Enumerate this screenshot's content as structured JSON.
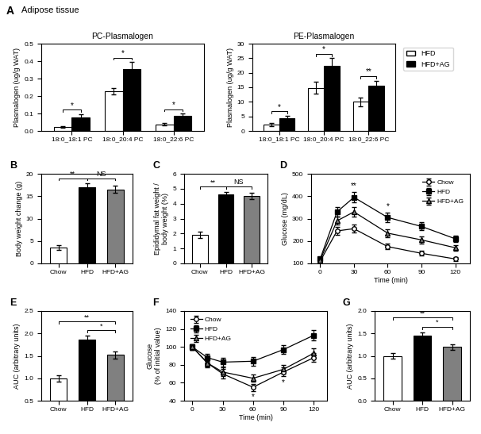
{
  "chart_data": [
    {
      "type": "bar",
      "panel_label": "A",
      "panel_title": "Adipose tissue",
      "title": "PC-Plasmalogen",
      "ylabel": "Plasmalogen (ug/g WAT)",
      "categories": [
        "18:0_18:1 PC",
        "18:0_20:4 PC",
        "18:0_22:6 PC"
      ],
      "series": [
        {
          "name": "HFD",
          "color": "white",
          "values": [
            0.022,
            0.228,
            0.038
          ],
          "errors": [
            0.005,
            0.018,
            0.007
          ]
        },
        {
          "name": "HFD+AG",
          "color": "black",
          "values": [
            0.078,
            0.355,
            0.087
          ],
          "errors": [
            0.018,
            0.04,
            0.012
          ]
        }
      ],
      "ylim": [
        0,
        0.5
      ],
      "yticks": [
        {
          "value": 0,
          "label": "0.0"
        },
        0.1,
        0.2,
        0.3,
        0.4,
        0.5
      ],
      "annotations": [
        {
          "text": "*",
          "category": "18:0_18:1 PC"
        },
        {
          "text": "*",
          "category": "18:0_20:4 PC"
        },
        {
          "text": "*",
          "category": "18:0_22:6 PC"
        }
      ]
    },
    {
      "type": "bar",
      "title": "PE-Plasmalogen",
      "ylabel": "Plasmalogen (ug/g WAT)",
      "categories": [
        "18:0_18:1 PC",
        "18:0_20:4 PC",
        "18:0_22:6 PC"
      ],
      "series": [
        {
          "name": "HFD",
          "color": "white",
          "values": [
            2.2,
            14.8,
            10.0
          ],
          "errors": [
            0.5,
            2.0,
            1.5
          ]
        },
        {
          "name": "HFD+AG",
          "color": "black",
          "values": [
            4.4,
            22.5,
            15.5
          ],
          "errors": [
            0.8,
            2.5,
            1.8
          ]
        }
      ],
      "ylim": [
        0,
        30
      ],
      "yticks": [
        0,
        5,
        10,
        15,
        20,
        25,
        30
      ],
      "legend": "right",
      "annotations": [
        {
          "text": "*",
          "category": "18:0_18:1 PC"
        },
        {
          "text": "*",
          "category": "18:0_20:4 PC"
        },
        {
          "text": "**",
          "category": "18:0_22:6 PC"
        }
      ]
    },
    {
      "type": "bar",
      "panel_label": "B",
      "ylabel": "Body weight change (g)",
      "categories": [
        "Chow",
        "HFD",
        "HFD+AG"
      ],
      "values": [
        3.5,
        17.0,
        16.5
      ],
      "errors": [
        0.5,
        0.8,
        0.8
      ],
      "colors": [
        "white",
        "black",
        "gray"
      ],
      "ylim": [
        0,
        20
      ],
      "yticks": [
        0,
        5,
        10,
        15,
        20
      ],
      "annotations": [
        {
          "text": "**",
          "from": "Chow",
          "to": "HFD"
        },
        {
          "text": "NS",
          "from": "HFD",
          "to": "HFD+AG"
        }
      ]
    },
    {
      "type": "bar",
      "panel_label": "C",
      "ylabel": "Epididymal fat weight /\nbody weight (%)",
      "categories": [
        "Chow",
        "HFD",
        "HFD+AG"
      ],
      "values": [
        1.9,
        4.6,
        4.5
      ],
      "errors": [
        0.2,
        0.2,
        0.2
      ],
      "colors": [
        "white",
        "black",
        "gray"
      ],
      "ylim": [
        0,
        6
      ],
      "yticks": [
        0,
        1,
        2,
        3,
        4,
        5,
        6
      ],
      "annotations": [
        {
          "text": "**",
          "from": "Chow",
          "to": "HFD"
        },
        {
          "text": "NS",
          "from": "HFD",
          "to": "HFD+AG"
        }
      ]
    },
    {
      "type": "line",
      "panel_label": "D",
      "xlabel": "Time (min)",
      "ylabel": "Glucose (mg/dL)",
      "x": [
        0,
        15,
        30,
        60,
        90,
        120
      ],
      "xlim": [
        -8,
        133
      ],
      "xticks": [
        0,
        30,
        60,
        90,
        120
      ],
      "ylim": [
        100,
        500
      ],
      "yticks": [
        100,
        200,
        300,
        400,
        500
      ],
      "legend": "upper right",
      "series": [
        {
          "name": "Chow",
          "color": "white",
          "marker": "circle",
          "values": [
            110,
            245,
            255,
            175,
            145,
            120
          ],
          "errors": [
            8,
            18,
            18,
            12,
            10,
            8
          ]
        },
        {
          "name": "HFD",
          "color": "black",
          "marker": "square",
          "values": [
            120,
            330,
            395,
            305,
            265,
            210
          ],
          "errors": [
            10,
            20,
            22,
            20,
            18,
            15
          ]
        },
        {
          "name": "HFD+AG",
          "color": "gray",
          "marker": "triangle",
          "values": [
            115,
            290,
            330,
            235,
            205,
            170
          ],
          "errors": [
            10,
            18,
            20,
            18,
            15,
            12
          ]
        }
      ],
      "annotations": [
        {
          "text": "**",
          "x": 30,
          "series": "HFD",
          "position": "above"
        },
        {
          "text": "*",
          "x": 60,
          "series": "HFD",
          "position": "above"
        }
      ]
    },
    {
      "type": "bar",
      "panel_label": "E",
      "ylabel": "AUC (arbitrary units)",
      "categories": [
        "Chow",
        "HFD",
        "HFD+AG"
      ],
      "values": [
        1.0,
        1.87,
        1.52
      ],
      "errors": [
        0.07,
        0.08,
        0.08
      ],
      "colors": [
        "white",
        "black",
        "gray"
      ],
      "ylim": [
        0.5,
        2.5
      ],
      "yticks": [
        0.5,
        {
          "value": 1.0,
          "label": "1.0"
        },
        1.5,
        {
          "value": 2.0,
          "label": "2.0"
        },
        2.5
      ],
      "annotations": [
        {
          "text": "**",
          "from": "Chow",
          "to": "HFD+AG"
        },
        {
          "text": "*",
          "from": "HFD",
          "to": "HFD+AG"
        }
      ]
    },
    {
      "type": "line",
      "panel_label": "F",
      "xlabel": "Time (min)",
      "ylabel": "Glucose\n(% of initial value)",
      "x": [
        0,
        15,
        30,
        60,
        90,
        120
      ],
      "xlim": [
        -8,
        133
      ],
      "xticks": [
        0,
        30,
        60,
        90,
        120
      ],
      "ylim": [
        40,
        140
      ],
      "yticks": [
        40,
        60,
        80,
        100,
        120,
        140
      ],
      "legend": "upper left",
      "series": [
        {
          "name": "Chow",
          "color": "white",
          "marker": "circle",
          "values": [
            100,
            82,
            70,
            55,
            72,
            88
          ],
          "errors": [
            3,
            5,
            5,
            4,
            5,
            5
          ]
        },
        {
          "name": "HFD",
          "color": "black",
          "marker": "square",
          "values": [
            100,
            88,
            83,
            84,
            97,
            113
          ],
          "errors": [
            3,
            4,
            5,
            5,
            5,
            6
          ]
        },
        {
          "name": "HFD+AG",
          "color": "gray",
          "marker": "triangle",
          "values": [
            100,
            82,
            72,
            65,
            75,
            93
          ],
          "errors": [
            3,
            4,
            5,
            4,
            5,
            5
          ]
        }
      ],
      "annotations": [
        {
          "text": "*",
          "x": 60,
          "series": "Chow",
          "position": "below"
        },
        {
          "text": "*",
          "x": 90,
          "series": "Chow",
          "position": "below"
        }
      ]
    },
    {
      "type": "bar",
      "panel_label": "G",
      "ylabel": "AUC (arbitrary units)",
      "categories": [
        "Chow",
        "HFD",
        "HFD+AG"
      ],
      "values": [
        1.0,
        1.45,
        1.2
      ],
      "errors": [
        0.06,
        0.08,
        0.06
      ],
      "colors": [
        "white",
        "black",
        "gray"
      ],
      "ylim": [
        0,
        2.0
      ],
      "yticks": [
        {
          "value": 0,
          "label": "0.0"
        },
        0.5,
        {
          "value": 1.0,
          "label": "1.0"
        },
        1.5,
        {
          "value": 2.0,
          "label": "2.0"
        }
      ],
      "annotations": [
        {
          "text": "**",
          "from": "Chow",
          "to": "HFD+AG"
        },
        {
          "text": "*",
          "from": "HFD",
          "to": "HFD+AG"
        }
      ]
    }
  ]
}
